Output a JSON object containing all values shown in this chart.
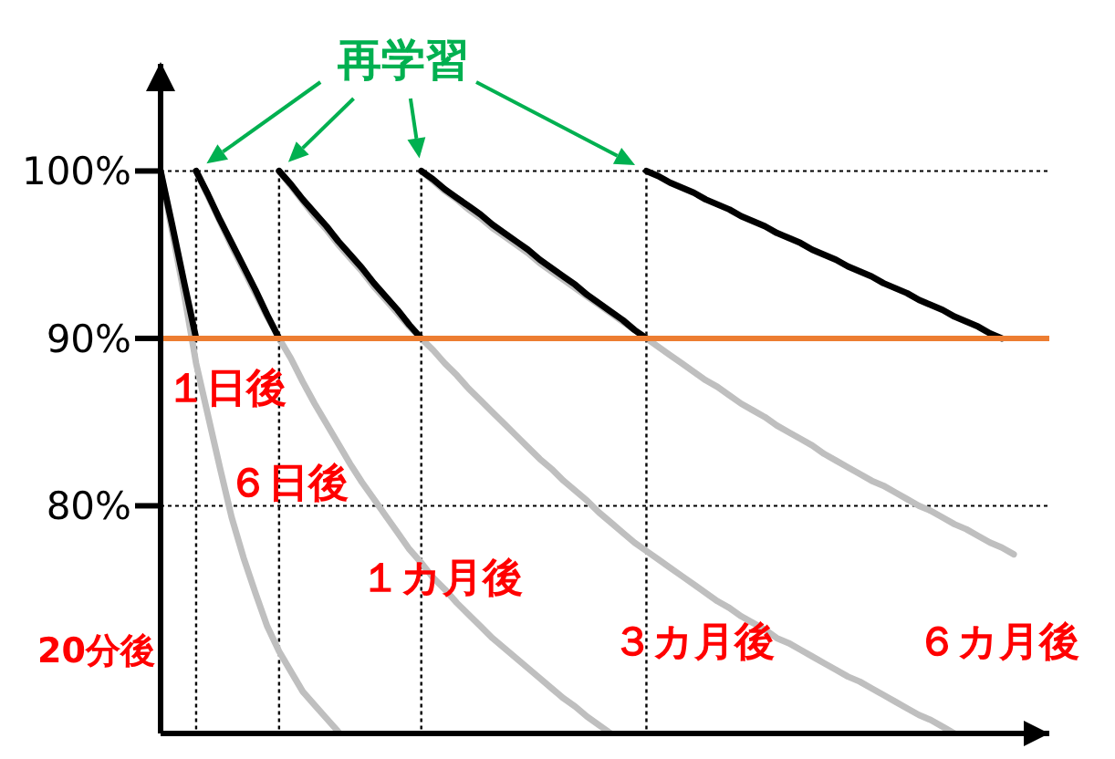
{
  "chart_data": {
    "type": "line",
    "categories": [
      null,
      null,
      null,
      null,
      null,
      null,
      null,
      null,
      null,
      null,
      null,
      null,
      null,
      null,
      null,
      null,
      null,
      null,
      null,
      null,
      null,
      null,
      null,
      null,
      null,
      null,
      null,
      null,
      null,
      null,
      null,
      null,
      null,
      null,
      null,
      null,
      null,
      null,
      null,
      null,
      null,
      null,
      null,
      null,
      null,
      null,
      null,
      null,
      null,
      null,
      null,
      null,
      null,
      null,
      null,
      null,
      null,
      null,
      null,
      null,
      null,
      null,
      null,
      null,
      null,
      null,
      null,
      null,
      null,
      null,
      null,
      null,
      null,
      null,
      null,
      null
    ],
    "ylim": [
      66.4,
      106.4
    ],
    "yticks": [
      {
        "value": 80,
        "label": "80%"
      },
      {
        "value": 90,
        "label": "90%"
      },
      {
        "value": 100,
        "label": "100%"
      }
    ],
    "tick_labels": "y",
    "grid": true,
    "series": [
      {
        "color": "#bfbfbf",
        "values": [
          100,
          96.3,
          92.6,
          88.5,
          85.4,
          82.3,
          79.3,
          76.9,
          74.8,
          72.8,
          71.3,
          70.1,
          68.9,
          68.1,
          67.3,
          66.5,
          null,
          null,
          null,
          null,
          null,
          null,
          null,
          null,
          null,
          null,
          null,
          null,
          null,
          null,
          null,
          null,
          null,
          null,
          null,
          null,
          null,
          null,
          null,
          null,
          null,
          null,
          null,
          null,
          null,
          null,
          null,
          null,
          null,
          null,
          null,
          null,
          null,
          null,
          null,
          null,
          null,
          null,
          null,
          null,
          null,
          null,
          null,
          null,
          null,
          null,
          null,
          null,
          null,
          null,
          null,
          null,
          null,
          null,
          null,
          null
        ]
      },
      {
        "color": "#bfbfbf",
        "values": [
          null,
          null,
          null,
          100,
          98.5,
          97.0,
          95.5,
          94.1,
          92.7,
          91.3,
          90.0,
          88.8,
          87.4,
          86.1,
          84.9,
          83.7,
          82.5,
          81.4,
          80.4,
          79.4,
          78.4,
          77.4,
          76.6,
          75.7,
          75.0,
          74.2,
          73.5,
          72.8,
          72.1,
          71.5,
          70.9,
          70.3,
          69.7,
          69.1,
          68.5,
          68.0,
          67.4,
          66.9,
          66.4,
          null,
          null,
          null,
          null,
          null,
          null,
          null,
          null,
          null,
          null,
          null,
          null,
          null,
          null,
          null,
          null,
          null,
          null,
          null,
          null,
          null,
          null,
          null,
          null,
          null,
          null,
          null,
          null,
          null,
          null,
          null,
          null,
          null,
          null,
          null,
          null,
          null
        ]
      },
      {
        "color": "#bfbfbf",
        "values": [
          null,
          null,
          null,
          null,
          null,
          null,
          null,
          null,
          null,
          null,
          100,
          99.1,
          98.2,
          97.3,
          96.5,
          95.6,
          94.8,
          94.0,
          93.1,
          92.3,
          91.5,
          90.7,
          90.0,
          89.3,
          88.5,
          87.8,
          87.0,
          86.3,
          85.6,
          84.9,
          84.2,
          83.5,
          82.8,
          82.2,
          81.5,
          80.9,
          80.3,
          79.6,
          79.0,
          78.4,
          77.8,
          77.3,
          76.8,
          76.3,
          75.8,
          75.3,
          74.8,
          74.3,
          73.9,
          73.4,
          73.0,
          72.6,
          72.1,
          71.8,
          71.4,
          71.0,
          70.6,
          70.2,
          69.8,
          69.5,
          69.1,
          68.7,
          68.3,
          67.9,
          67.5,
          67.2,
          66.8,
          66.4,
          null,
          null,
          null,
          null,
          null,
          null,
          null,
          null
        ]
      },
      {
        "color": "#bfbfbf",
        "values": [
          null,
          null,
          null,
          null,
          null,
          null,
          null,
          null,
          null,
          null,
          null,
          null,
          null,
          null,
          null,
          null,
          null,
          null,
          null,
          null,
          null,
          null,
          100,
          99.4,
          98.8,
          98.3,
          97.7,
          97.2,
          96.6,
          96.1,
          95.6,
          95.1,
          94.5,
          94.0,
          93.5,
          93.0,
          92.5,
          92.0,
          91.5,
          91.0,
          90.5,
          90.0,
          89.5,
          89.0,
          88.5,
          88.0,
          87.5,
          87.1,
          86.6,
          86.1,
          85.7,
          85.3,
          84.8,
          84.4,
          84.0,
          83.6,
          83.1,
          82.7,
          82.3,
          81.9,
          81.5,
          81.2,
          80.8,
          80.4,
          80.0,
          79.7,
          79.3,
          78.9,
          78.6,
          78.2,
          77.8,
          77.5,
          77.1,
          null,
          null,
          null
        ]
      },
      {
        "color": "#000000",
        "values": [
          100,
          96.7,
          93.3,
          90.0,
          null,
          null,
          null,
          null,
          null,
          null,
          null,
          null,
          null,
          null,
          null,
          null,
          null,
          null,
          null,
          null,
          null,
          null,
          null,
          null,
          null,
          null,
          null,
          null,
          null,
          null,
          null,
          null,
          null,
          null,
          null,
          null,
          null,
          null,
          null,
          null,
          null,
          null,
          null,
          null,
          null,
          null,
          null,
          null,
          null,
          null,
          null,
          null,
          null,
          null,
          null,
          null,
          null,
          null,
          null,
          null,
          null,
          null,
          null,
          null,
          null,
          null,
          null,
          null,
          null,
          null,
          null,
          null,
          null,
          null,
          null,
          null
        ]
      },
      {
        "color": "#000000",
        "values": [
          null,
          null,
          null,
          100,
          98.6,
          97.1,
          95.7,
          94.3,
          92.9,
          91.4,
          90.0,
          null,
          null,
          null,
          null,
          null,
          null,
          null,
          null,
          null,
          null,
          null,
          null,
          null,
          null,
          null,
          null,
          null,
          null,
          null,
          null,
          null,
          null,
          null,
          null,
          null,
          null,
          null,
          null,
          null,
          null,
          null,
          null,
          null,
          null,
          null,
          null,
          null,
          null,
          null,
          null,
          null,
          null,
          null,
          null,
          null,
          null,
          null,
          null,
          null,
          null,
          null,
          null,
          null,
          null,
          null,
          null,
          null,
          null,
          null,
          null,
          null,
          null,
          null,
          null,
          null
        ]
      },
      {
        "color": "#000000",
        "values": [
          null,
          null,
          null,
          null,
          null,
          null,
          null,
          null,
          null,
          null,
          100,
          99.2,
          98.3,
          97.5,
          96.7,
          95.8,
          95.0,
          94.2,
          93.3,
          92.5,
          91.7,
          90.8,
          90.0,
          null,
          null,
          null,
          null,
          null,
          null,
          null,
          null,
          null,
          null,
          null,
          null,
          null,
          null,
          null,
          null,
          null,
          null,
          null,
          null,
          null,
          null,
          null,
          null,
          null,
          null,
          null,
          null,
          null,
          null,
          null,
          null,
          null,
          null,
          null,
          null,
          null,
          null,
          null,
          null,
          null,
          null,
          null,
          null,
          null,
          null,
          null,
          null,
          null,
          null,
          null,
          null,
          null
        ]
      },
      {
        "color": "#000000",
        "values": [
          null,
          null,
          null,
          null,
          null,
          null,
          null,
          null,
          null,
          null,
          null,
          null,
          null,
          null,
          null,
          null,
          null,
          null,
          null,
          null,
          null,
          null,
          100,
          99.5,
          98.9,
          98.4,
          97.9,
          97.4,
          96.8,
          96.3,
          95.8,
          95.3,
          94.7,
          94.2,
          93.7,
          93.2,
          92.6,
          92.1,
          91.6,
          91.1,
          90.5,
          90.0,
          null,
          null,
          null,
          null,
          null,
          null,
          null,
          null,
          null,
          null,
          null,
          null,
          null,
          null,
          null,
          null,
          null,
          null,
          null,
          null,
          null,
          null,
          null,
          null,
          null,
          null,
          null,
          null,
          null,
          null,
          null,
          null,
          null,
          null
        ]
      },
      {
        "color": "#000000",
        "values": [
          null,
          null,
          null,
          null,
          null,
          null,
          null,
          null,
          null,
          null,
          null,
          null,
          null,
          null,
          null,
          null,
          null,
          null,
          null,
          null,
          null,
          null,
          null,
          null,
          null,
          null,
          null,
          null,
          null,
          null,
          null,
          null,
          null,
          null,
          null,
          null,
          null,
          null,
          null,
          null,
          null,
          100,
          99.7,
          99.3,
          99.0,
          98.7,
          98.3,
          98.0,
          97.7,
          97.3,
          97.0,
          96.7,
          96.3,
          96.0,
          95.7,
          95.3,
          95.0,
          94.7,
          94.3,
          94.0,
          93.7,
          93.3,
          93.0,
          92.7,
          92.3,
          92.0,
          91.7,
          91.3,
          91.0,
          90.7,
          90.3,
          90.0,
          null,
          null,
          null,
          null
        ]
      }
    ],
    "ref_lines": [
      {
        "axis": "y",
        "value": 90,
        "color": "#ed7d31",
        "line_style": "solid"
      }
    ],
    "annotations": [
      "再学習",
      "20分後",
      "１日後",
      "６日後",
      "１カ月後",
      "３カ月後",
      "６カ月後"
    ]
  }
}
